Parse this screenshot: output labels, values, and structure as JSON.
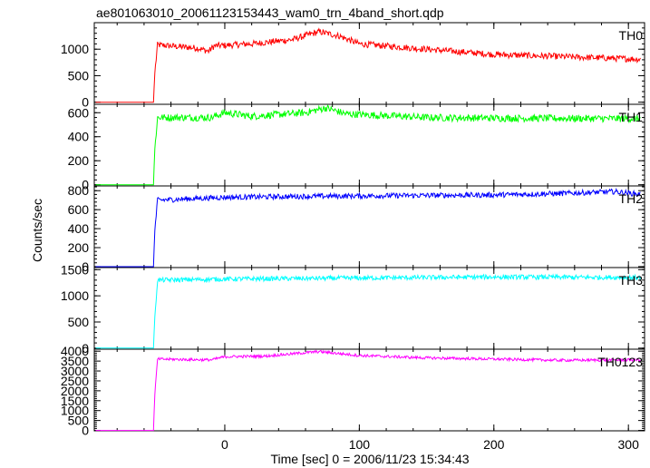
{
  "chart_data": {
    "type": "line",
    "title": "ae801063010_20061123153443_wam0_trn_4band_short.qdp",
    "xlabel": "Time [sec] 0 = 2006/11/23 15:34:43",
    "ylabel": "Counts/sec",
    "xlim": [
      -97,
      312
    ],
    "x_ticks": [
      0,
      100,
      200,
      300
    ],
    "x_tick_labels": [
      "0",
      "100",
      "200",
      "300"
    ],
    "grid": false,
    "onset_x": -52,
    "panels": [
      {
        "name": "TH0",
        "color": "#ff0000",
        "ylim": [
          -40,
          1500
        ],
        "y_ticks": [
          0,
          500,
          1000
        ],
        "y_tick_labels": [
          "0",
          "500",
          "1000"
        ],
        "noise": 60,
        "profile": [
          [
            -97,
            0
          ],
          [
            -53,
            0
          ],
          [
            -52,
            550
          ],
          [
            -50,
            1080
          ],
          [
            -20,
            1020
          ],
          [
            -12,
            960
          ],
          [
            -8,
            1060
          ],
          [
            20,
            1100
          ],
          [
            50,
            1180
          ],
          [
            70,
            1330
          ],
          [
            85,
            1250
          ],
          [
            100,
            1100
          ],
          [
            150,
            1000
          ],
          [
            200,
            900
          ],
          [
            250,
            860
          ],
          [
            310,
            810
          ]
        ]
      },
      {
        "name": "TH1",
        "color": "#00ff00",
        "ylim": [
          -10,
          670
        ],
        "y_ticks": [
          0,
          200,
          400,
          600
        ],
        "y_tick_labels": [
          "0",
          "200",
          "400",
          "600"
        ],
        "noise": 30,
        "profile": [
          [
            -97,
            0
          ],
          [
            -53,
            0
          ],
          [
            -52,
            300
          ],
          [
            -50,
            560
          ],
          [
            -10,
            560
          ],
          [
            0,
            600
          ],
          [
            20,
            570
          ],
          [
            60,
            600
          ],
          [
            75,
            640
          ],
          [
            90,
            590
          ],
          [
            150,
            560
          ],
          [
            200,
            555
          ],
          [
            310,
            550
          ]
        ]
      },
      {
        "name": "TH2",
        "color": "#0000ff",
        "ylim": [
          -10,
          850
        ],
        "y_ticks": [
          0,
          200,
          400,
          600,
          800
        ],
        "y_tick_labels": [
          "0",
          "200",
          "400",
          "600",
          "800"
        ],
        "noise": 28,
        "profile": [
          [
            -97,
            0
          ],
          [
            -53,
            0
          ],
          [
            -52,
            380
          ],
          [
            -50,
            700
          ],
          [
            0,
            730
          ],
          [
            60,
            740
          ],
          [
            100,
            745
          ],
          [
            200,
            755
          ],
          [
            250,
            770
          ],
          [
            290,
            790
          ],
          [
            310,
            760
          ]
        ]
      },
      {
        "name": "TH3",
        "color": "#00ffff",
        "ylim": [
          -20,
          1540
        ],
        "y_ticks": [
          0,
          500,
          1000,
          1500
        ],
        "y_tick_labels": [
          "0",
          "500",
          "1000",
          "1500"
        ],
        "noise": 45,
        "profile": [
          [
            -97,
            0
          ],
          [
            -53,
            0
          ],
          [
            -52,
            600
          ],
          [
            -50,
            1300
          ],
          [
            0,
            1320
          ],
          [
            100,
            1340
          ],
          [
            200,
            1360
          ],
          [
            310,
            1350
          ]
        ]
      },
      {
        "name": "TH0123",
        "color": "#ff00ff",
        "ylim": [
          -20,
          4100
        ],
        "y_ticks": [
          0,
          500,
          1000,
          1500,
          2000,
          2500,
          3000,
          3500,
          4000
        ],
        "y_tick_labels": [
          "0",
          "500",
          "1000",
          "1500",
          "2000",
          "2500",
          "3000",
          "3500",
          "4000"
        ],
        "noise": 70,
        "profile": [
          [
            -97,
            0
          ],
          [
            -53,
            0
          ],
          [
            -52,
            1800
          ],
          [
            -50,
            3600
          ],
          [
            -10,
            3560
          ],
          [
            0,
            3720
          ],
          [
            30,
            3750
          ],
          [
            70,
            3980
          ],
          [
            100,
            3780
          ],
          [
            150,
            3660
          ],
          [
            200,
            3600
          ],
          [
            250,
            3540
          ],
          [
            310,
            3560
          ]
        ]
      }
    ]
  }
}
